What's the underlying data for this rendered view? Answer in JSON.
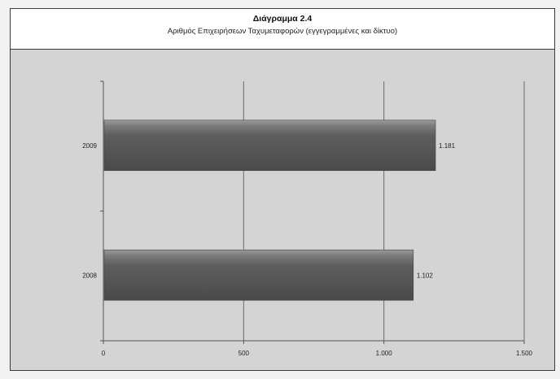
{
  "chart_data": {
    "type": "bar",
    "orientation": "horizontal",
    "title": "Διάγραμμα 2.4",
    "subtitle": "Αριθμός Επιχειρήσεων Ταχυμεταφορών (εγγεγραμμένες και δίκτυο)",
    "categories": [
      "2009",
      "2008"
    ],
    "values": [
      1181,
      1102
    ],
    "value_labels": [
      "1.181",
      "1.102"
    ],
    "xlim": [
      0,
      1500
    ],
    "xticks": [
      0,
      500,
      1000,
      1500
    ],
    "xtick_labels": [
      "0",
      "500",
      "1.000",
      "1.500"
    ],
    "xlabel": "",
    "ylabel": "",
    "grid": "vertical",
    "bar_color": "#5a5a5a",
    "plot_background": "#d4d4d4"
  }
}
